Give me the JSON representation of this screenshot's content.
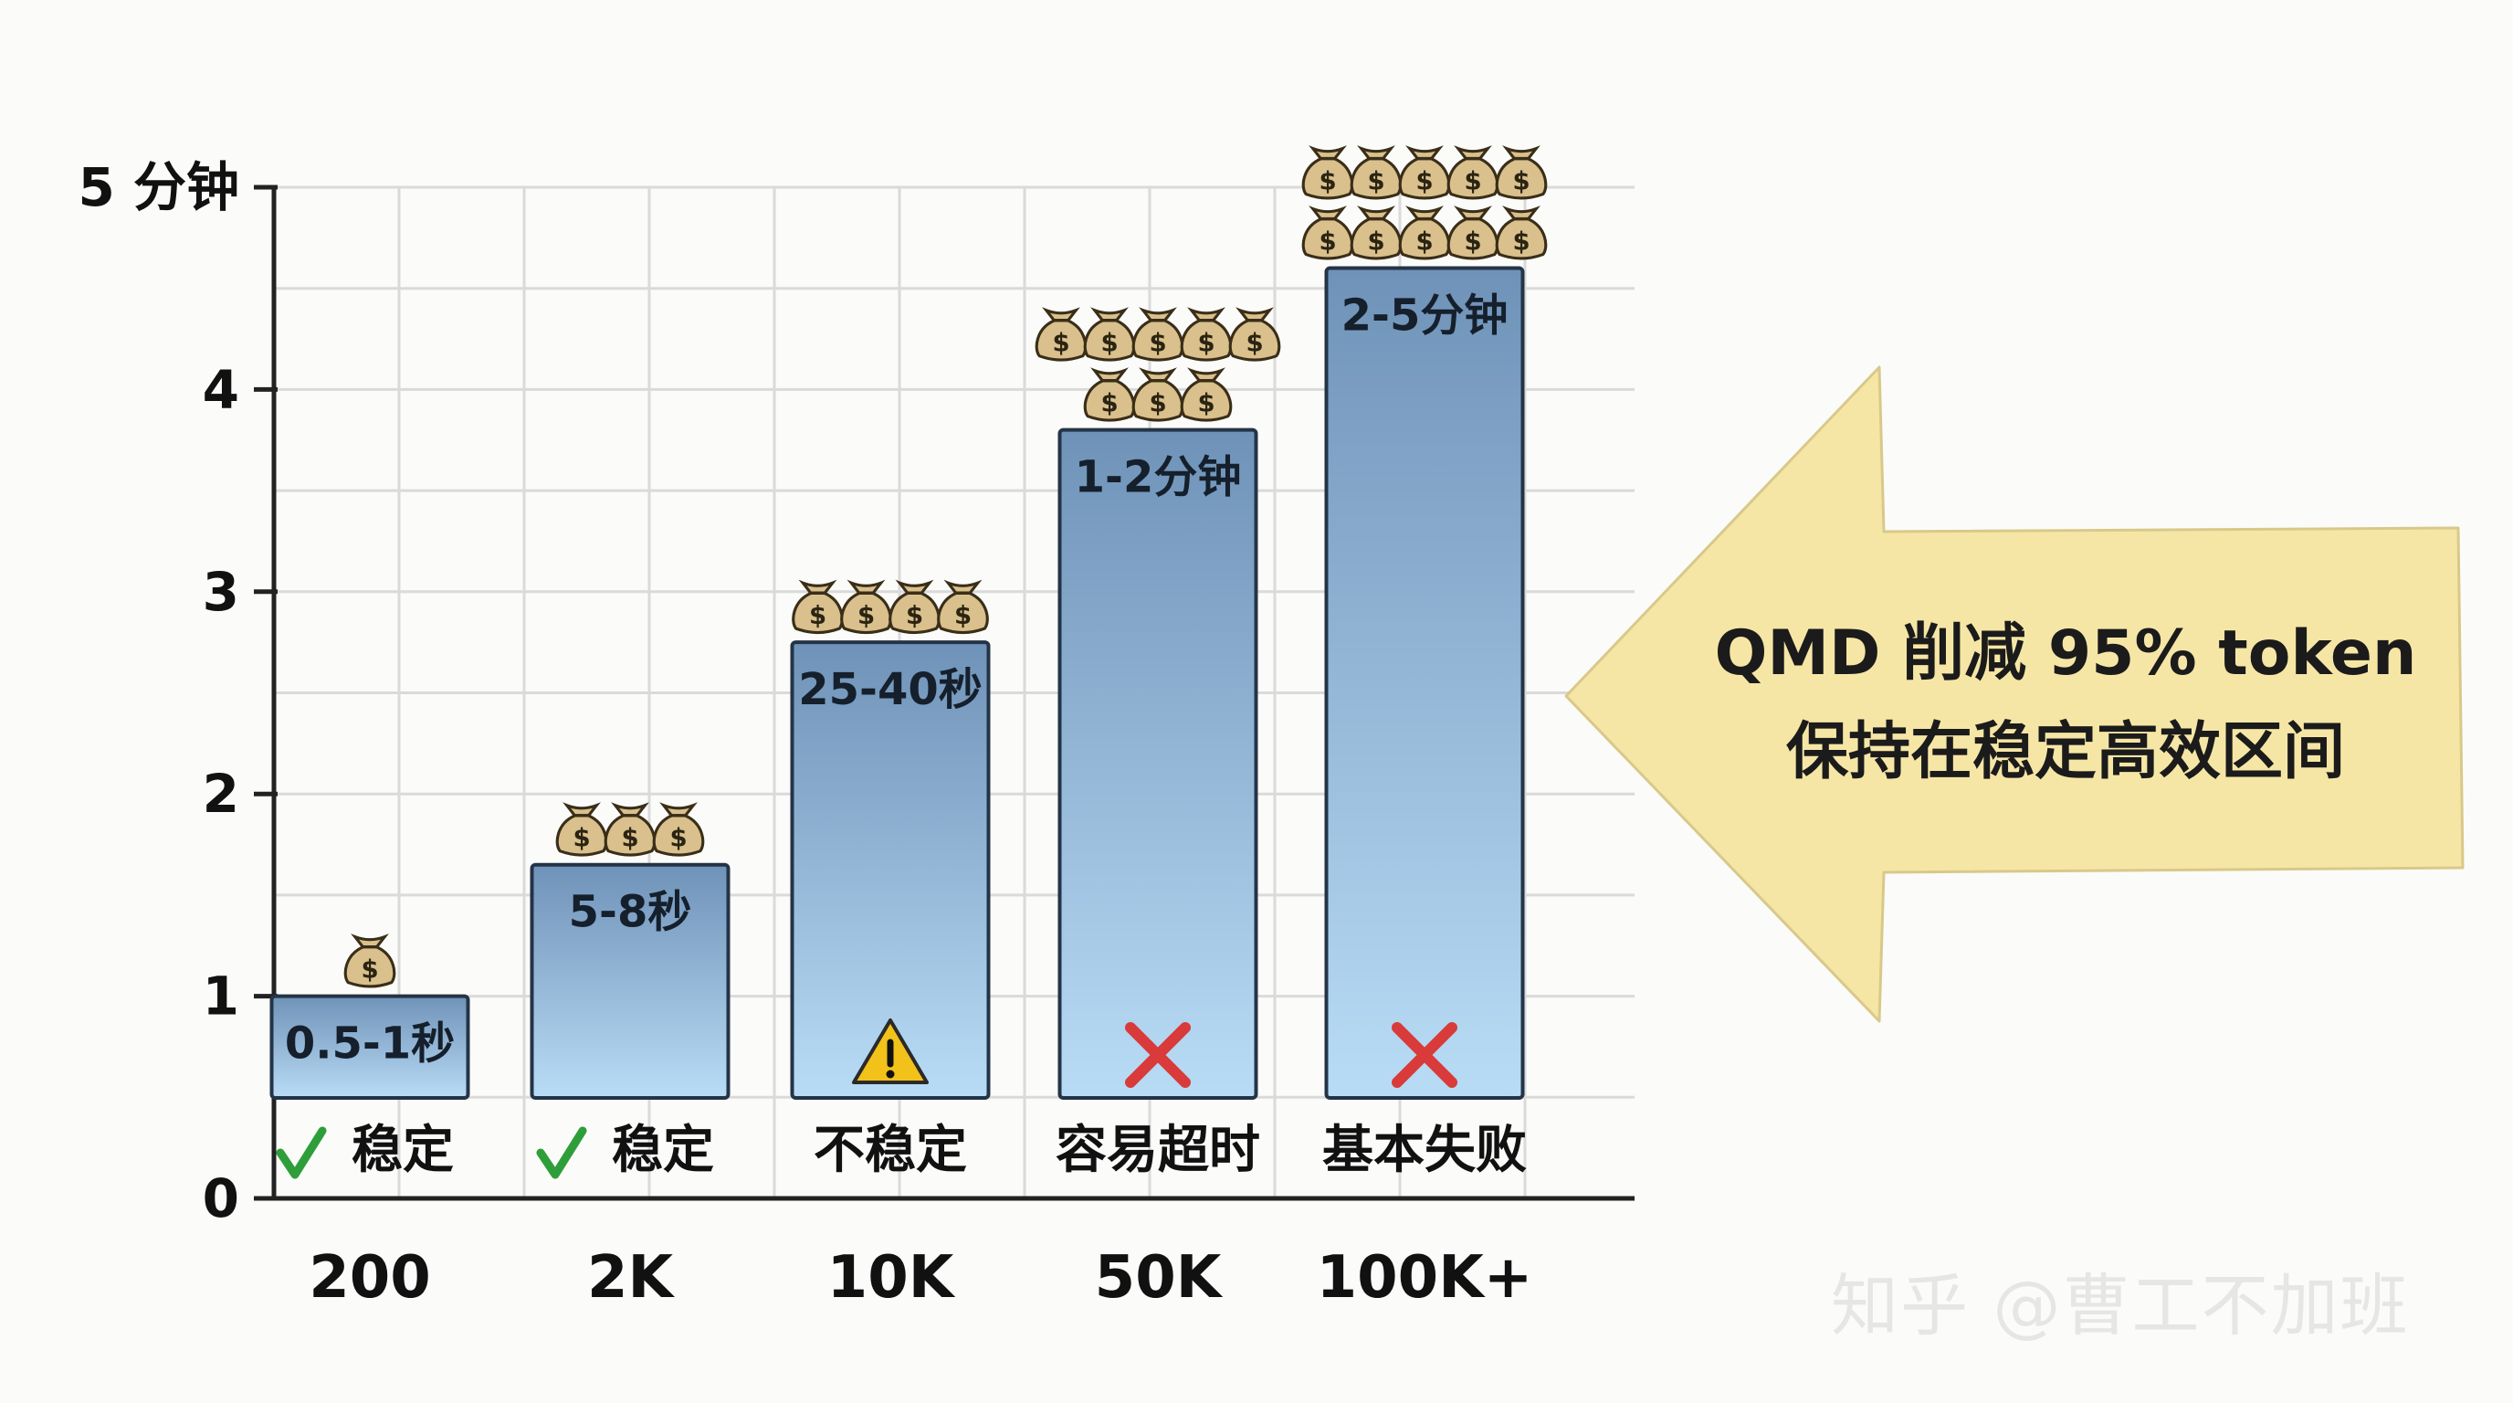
{
  "chart_data": {
    "type": "bar",
    "categories": [
      "200",
      "2K",
      "10K",
      "50K",
      "100K+"
    ],
    "values": [
      1.0,
      1.65,
      2.75,
      3.8,
      4.6
    ],
    "ylim": [
      0,
      5
    ],
    "y_ticks": [
      {
        "value": 0,
        "label": "0"
      },
      {
        "value": 1,
        "label": "1"
      },
      {
        "value": 2,
        "label": "2"
      },
      {
        "value": 3,
        "label": "3"
      },
      {
        "value": 4,
        "label": "4"
      },
      {
        "value": 5,
        "label": "5 分钟"
      }
    ],
    "bar_labels": [
      "0.5-1秒",
      "5-8秒",
      "25-40秒",
      "1-2分钟",
      "2-5分钟"
    ],
    "status_labels": [
      "稳定",
      "稳定",
      "不稳定",
      "容易超时",
      "基本失败"
    ],
    "status_icons": [
      "check-icon",
      "check-icon",
      "warning-icon",
      "cross-icon",
      "cross-icon"
    ],
    "cost_bags": [
      1,
      3,
      4,
      8,
      10
    ],
    "grid": true,
    "colors": {
      "bar_top": "#6f92b8",
      "bar_bottom": "#b9dcf6",
      "bar_outline": "#243447",
      "check": "#2e9e3a",
      "cross": "#d93a3a",
      "warning": "#f2c21a",
      "bag": "#d9c08c",
      "arrow": "#f6e6a6"
    }
  },
  "callout": {
    "line1": "QMD 削减 95% token",
    "line2": "保持在稳定高效区间"
  },
  "watermark": "知乎 @曹工不加班"
}
